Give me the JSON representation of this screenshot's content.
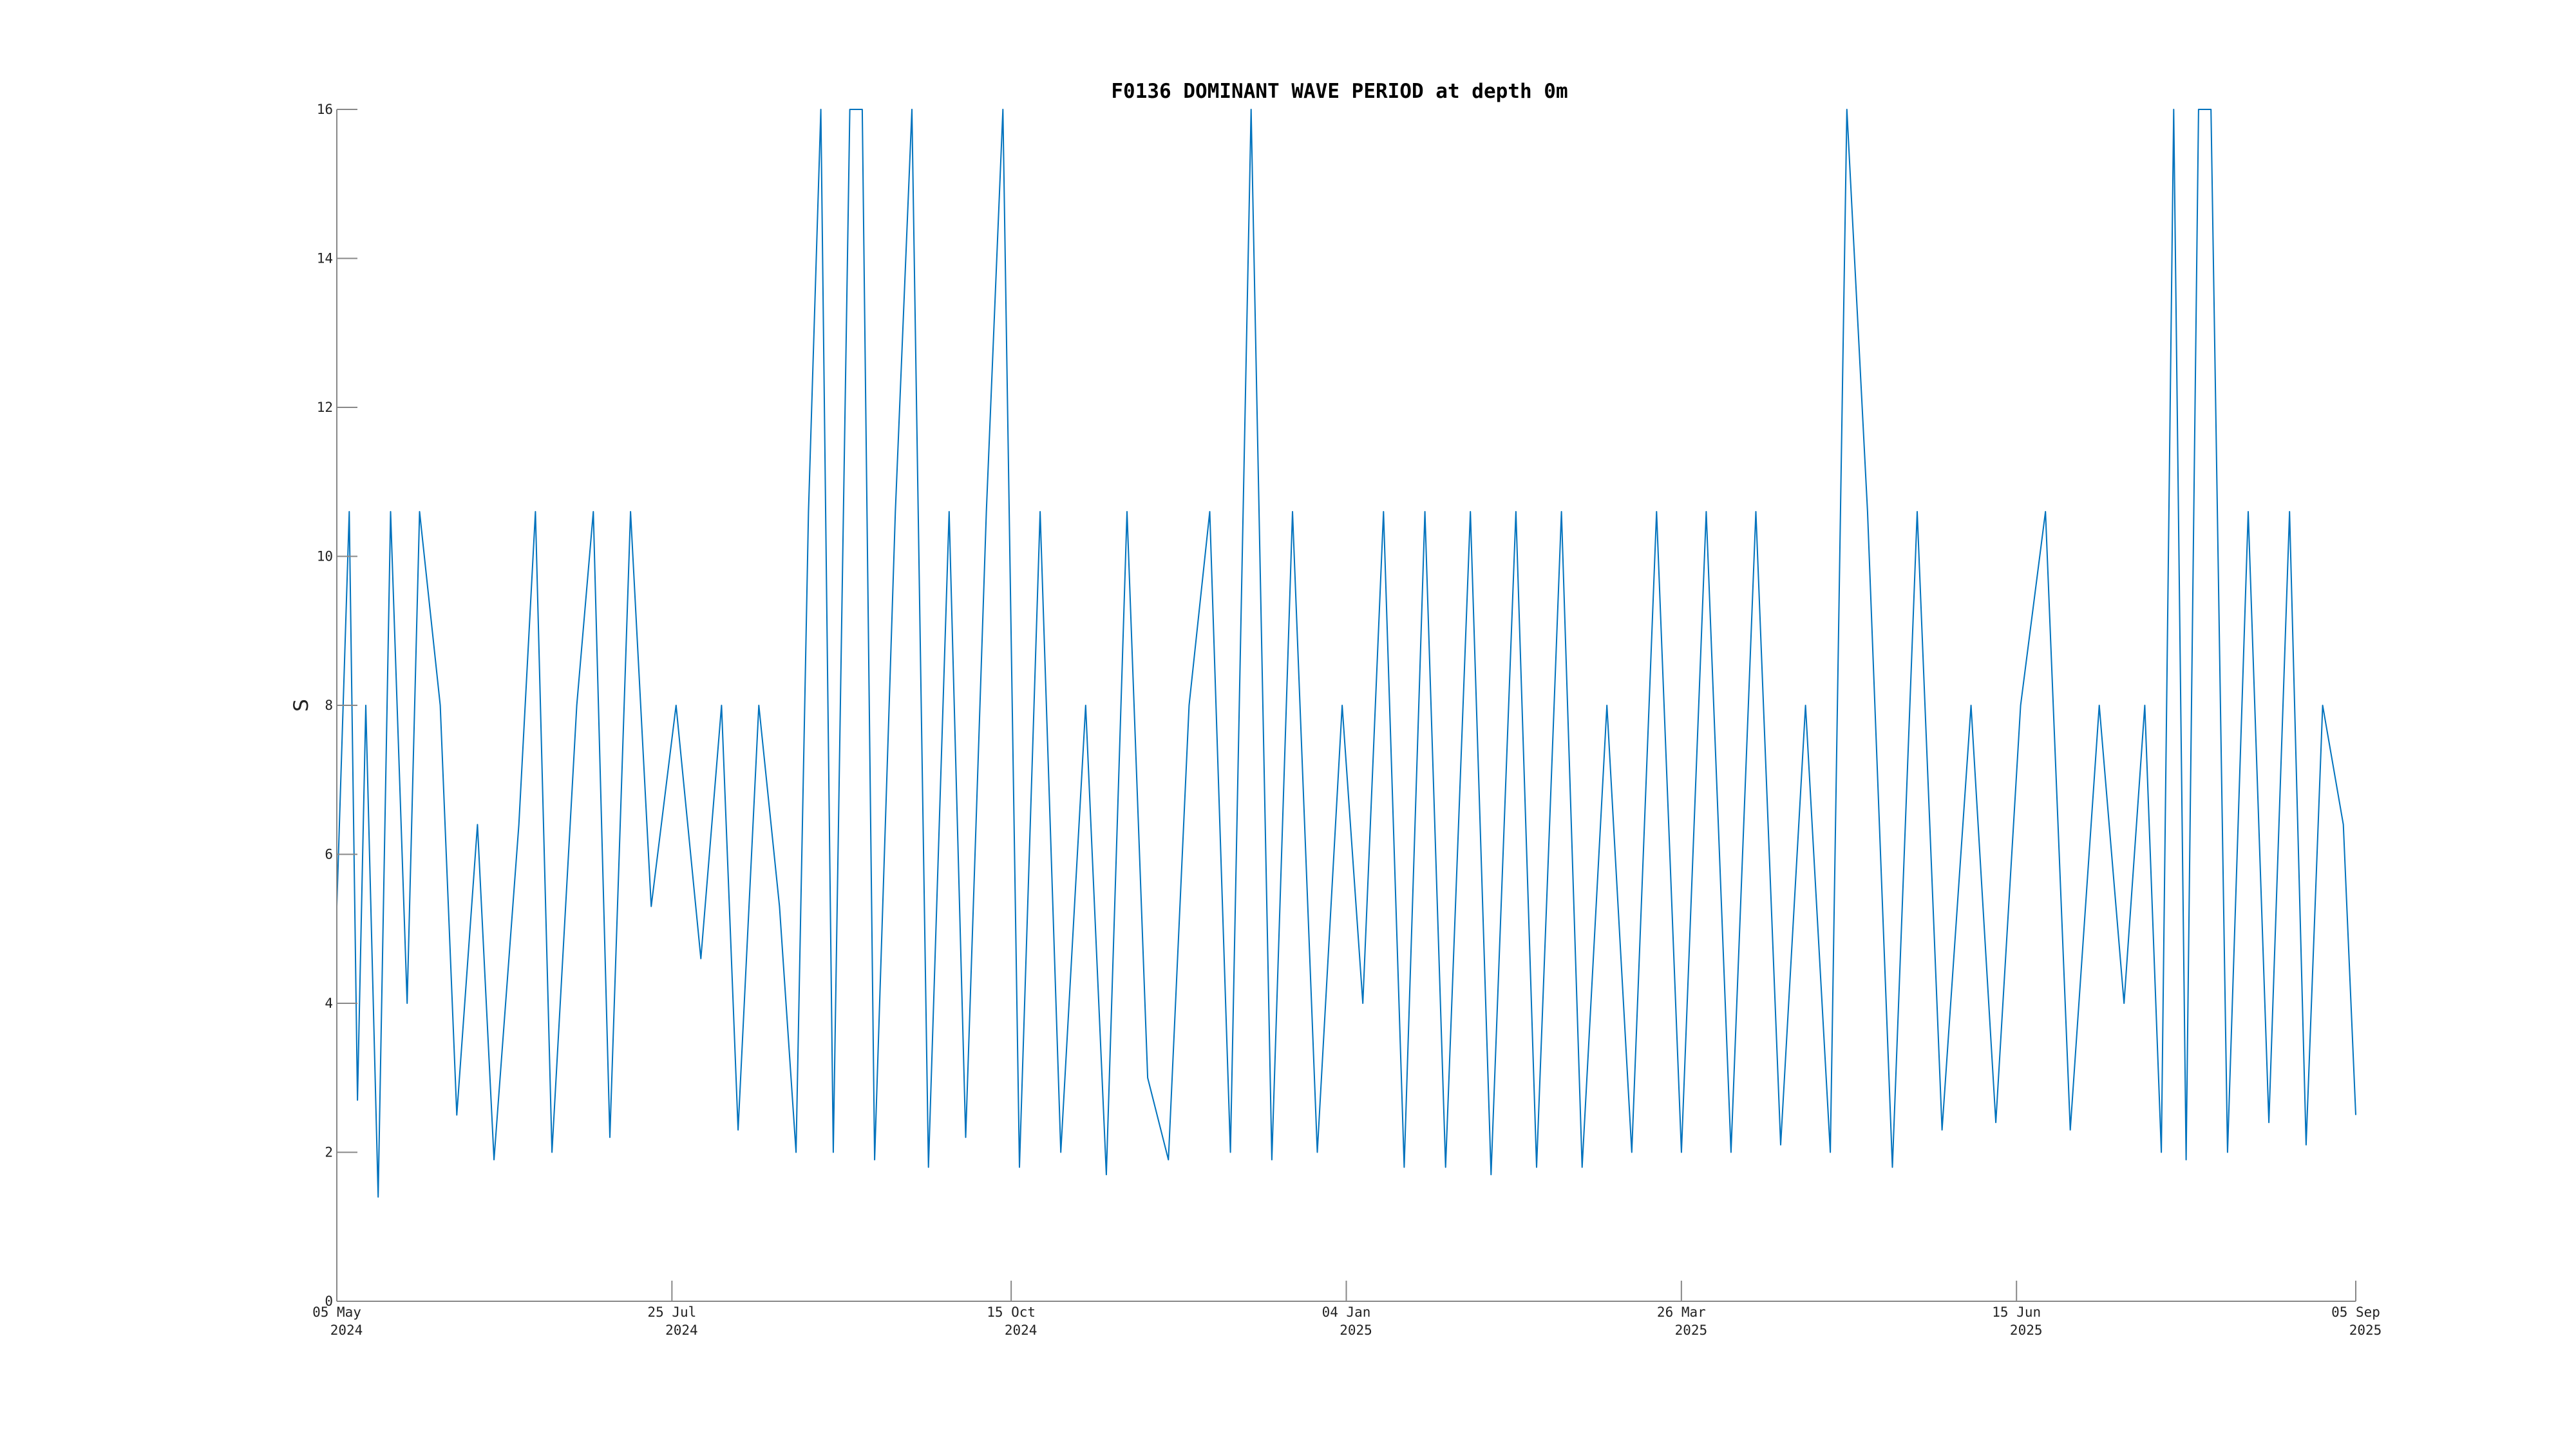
{
  "chart_data": {
    "type": "line",
    "title": "F0136 DOMINANT WAVE PERIOD at depth 0m",
    "xlabel": "",
    "ylabel": "S",
    "ylim": [
      0,
      16
    ],
    "yticks": [
      0,
      2,
      4,
      6,
      8,
      10,
      12,
      14,
      16
    ],
    "xlim": [
      "2024-05-05",
      "2025-09-05"
    ],
    "xticks": [
      {
        "date": "2024-05-05",
        "line1": "05 May",
        "line2": "2024"
      },
      {
        "date": "2024-07-25",
        "line1": "25 Jul",
        "line2": "2024"
      },
      {
        "date": "2024-10-15",
        "line1": "15 Oct",
        "line2": "2024"
      },
      {
        "date": "2025-01-04",
        "line1": "04 Jan",
        "line2": "2025"
      },
      {
        "date": "2025-03-26",
        "line1": "26 Mar",
        "line2": "2025"
      },
      {
        "date": "2025-06-15",
        "line1": "15 Jun",
        "line2": "2025"
      },
      {
        "date": "2025-09-05",
        "line1": "05 Sep",
        "line2": "2025"
      }
    ],
    "grid": false,
    "series_color": "#0072bd",
    "series": [
      {
        "values": [
          {
            "x": "2024-05-05",
            "y": 5.3
          },
          {
            "x": "2024-05-08",
            "y": 10.6
          },
          {
            "x": "2024-05-10",
            "y": 2.7
          },
          {
            "x": "2024-05-12",
            "y": 8.0
          },
          {
            "x": "2024-05-15",
            "y": 1.4
          },
          {
            "x": "2024-05-18",
            "y": 10.6
          },
          {
            "x": "2024-05-22",
            "y": 4.0
          },
          {
            "x": "2024-05-25",
            "y": 10.6
          },
          {
            "x": "2024-05-30",
            "y": 8.0
          },
          {
            "x": "2024-06-03",
            "y": 2.5
          },
          {
            "x": "2024-06-08",
            "y": 6.4
          },
          {
            "x": "2024-06-12",
            "y": 1.9
          },
          {
            "x": "2024-06-18",
            "y": 6.4
          },
          {
            "x": "2024-06-22",
            "y": 10.6
          },
          {
            "x": "2024-06-26",
            "y": 2.0
          },
          {
            "x": "2024-07-02",
            "y": 8.0
          },
          {
            "x": "2024-07-06",
            "y": 10.6
          },
          {
            "x": "2024-07-10",
            "y": 2.2
          },
          {
            "x": "2024-07-15",
            "y": 10.6
          },
          {
            "x": "2024-07-20",
            "y": 5.3
          },
          {
            "x": "2024-07-26",
            "y": 8.0
          },
          {
            "x": "2024-08-01",
            "y": 4.6
          },
          {
            "x": "2024-08-06",
            "y": 8.0
          },
          {
            "x": "2024-08-10",
            "y": 2.3
          },
          {
            "x": "2024-08-15",
            "y": 8.0
          },
          {
            "x": "2024-08-20",
            "y": 5.3
          },
          {
            "x": "2024-08-24",
            "y": 2.0
          },
          {
            "x": "2024-08-27",
            "y": 10.6
          },
          {
            "x": "2024-08-30",
            "y": 16.0
          },
          {
            "x": "2024-09-02",
            "y": 2.0
          },
          {
            "x": "2024-09-06",
            "y": 16.0
          },
          {
            "x": "2024-09-09",
            "y": 16.0
          },
          {
            "x": "2024-09-12",
            "y": 1.9
          },
          {
            "x": "2024-09-17",
            "y": 10.6
          },
          {
            "x": "2024-09-21",
            "y": 16.0
          },
          {
            "x": "2024-09-25",
            "y": 1.8
          },
          {
            "x": "2024-09-30",
            "y": 10.6
          },
          {
            "x": "2024-10-04",
            "y": 2.2
          },
          {
            "x": "2024-10-09",
            "y": 10.6
          },
          {
            "x": "2024-10-13",
            "y": 16.0
          },
          {
            "x": "2024-10-17",
            "y": 1.8
          },
          {
            "x": "2024-10-22",
            "y": 10.6
          },
          {
            "x": "2024-10-27",
            "y": 2.0
          },
          {
            "x": "2024-11-02",
            "y": 8.0
          },
          {
            "x": "2024-11-07",
            "y": 1.7
          },
          {
            "x": "2024-11-12",
            "y": 10.6
          },
          {
            "x": "2024-11-17",
            "y": 3.0
          },
          {
            "x": "2024-11-22",
            "y": 1.9
          },
          {
            "x": "2024-11-27",
            "y": 8.0
          },
          {
            "x": "2024-12-02",
            "y": 10.6
          },
          {
            "x": "2024-12-07",
            "y": 2.0
          },
          {
            "x": "2024-12-12",
            "y": 16.0
          },
          {
            "x": "2024-12-17",
            "y": 1.9
          },
          {
            "x": "2024-12-22",
            "y": 10.6
          },
          {
            "x": "2024-12-28",
            "y": 2.0
          },
          {
            "x": "2025-01-03",
            "y": 8.0
          },
          {
            "x": "2025-01-08",
            "y": 4.0
          },
          {
            "x": "2025-01-13",
            "y": 10.6
          },
          {
            "x": "2025-01-18",
            "y": 1.8
          },
          {
            "x": "2025-01-23",
            "y": 10.6
          },
          {
            "x": "2025-01-28",
            "y": 1.8
          },
          {
            "x": "2025-02-03",
            "y": 10.6
          },
          {
            "x": "2025-02-08",
            "y": 1.7
          },
          {
            "x": "2025-02-14",
            "y": 10.6
          },
          {
            "x": "2025-02-19",
            "y": 1.8
          },
          {
            "x": "2025-02-25",
            "y": 10.6
          },
          {
            "x": "2025-03-02",
            "y": 1.8
          },
          {
            "x": "2025-03-08",
            "y": 8.0
          },
          {
            "x": "2025-03-14",
            "y": 2.0
          },
          {
            "x": "2025-03-20",
            "y": 10.6
          },
          {
            "x": "2025-03-26",
            "y": 2.0
          },
          {
            "x": "2025-04-01",
            "y": 10.6
          },
          {
            "x": "2025-04-07",
            "y": 2.0
          },
          {
            "x": "2025-04-13",
            "y": 10.6
          },
          {
            "x": "2025-04-19",
            "y": 2.1
          },
          {
            "x": "2025-04-25",
            "y": 8.0
          },
          {
            "x": "2025-05-01",
            "y": 2.0
          },
          {
            "x": "2025-05-05",
            "y": 16.0
          },
          {
            "x": "2025-05-10",
            "y": 10.6
          },
          {
            "x": "2025-05-16",
            "y": 1.8
          },
          {
            "x": "2025-05-22",
            "y": 10.6
          },
          {
            "x": "2025-05-28",
            "y": 2.3
          },
          {
            "x": "2025-06-04",
            "y": 8.0
          },
          {
            "x": "2025-06-10",
            "y": 2.4
          },
          {
            "x": "2025-06-16",
            "y": 8.0
          },
          {
            "x": "2025-06-22",
            "y": 10.6
          },
          {
            "x": "2025-06-28",
            "y": 2.3
          },
          {
            "x": "2025-07-05",
            "y": 8.0
          },
          {
            "x": "2025-07-11",
            "y": 4.0
          },
          {
            "x": "2025-07-16",
            "y": 8.0
          },
          {
            "x": "2025-07-20",
            "y": 2.0
          },
          {
            "x": "2025-07-23",
            "y": 16.0
          },
          {
            "x": "2025-07-26",
            "y": 1.9
          },
          {
            "x": "2025-07-29",
            "y": 16.0
          },
          {
            "x": "2025-08-01",
            "y": 16.0
          },
          {
            "x": "2025-08-05",
            "y": 2.0
          },
          {
            "x": "2025-08-10",
            "y": 10.6
          },
          {
            "x": "2025-08-15",
            "y": 2.4
          },
          {
            "x": "2025-08-20",
            "y": 10.6
          },
          {
            "x": "2025-08-24",
            "y": 2.1
          },
          {
            "x": "2025-08-28",
            "y": 8.0
          },
          {
            "x": "2025-09-02",
            "y": 6.4
          },
          {
            "x": "2025-09-05",
            "y": 2.5
          }
        ]
      }
    ]
  }
}
